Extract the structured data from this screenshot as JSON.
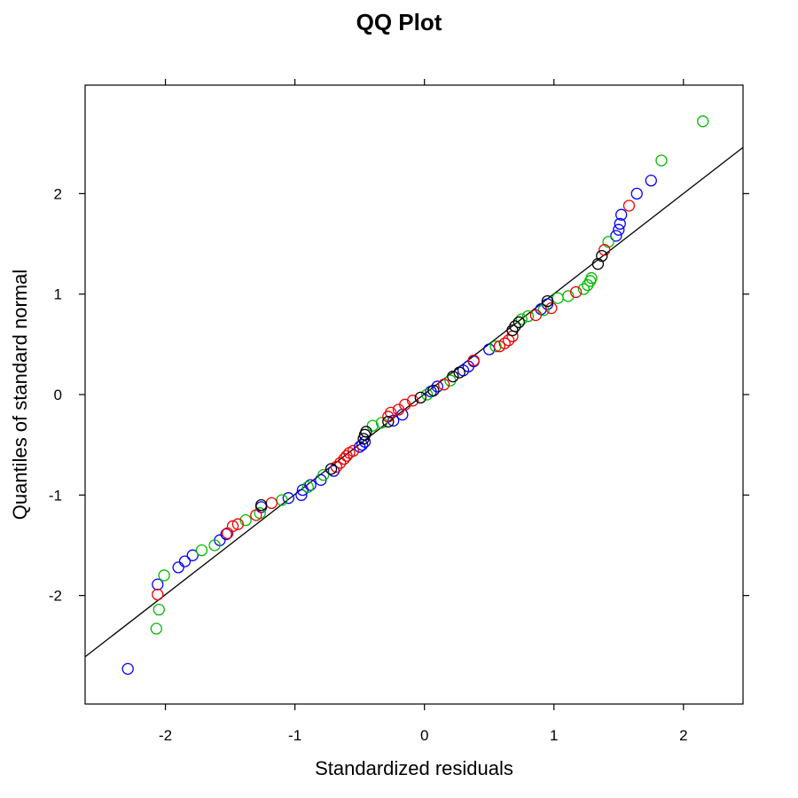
{
  "chart_data": {
    "type": "scatter",
    "title": "QQ Plot",
    "xlabel": "Standardized residuals",
    "ylabel": "Quantiles of standard normal",
    "xlim": [
      -2.62,
      2.46
    ],
    "ylim": [
      -3.08,
      3.08
    ],
    "x_ticks": [
      -2,
      -1,
      0,
      1,
      2
    ],
    "x_tick_labels": [
      "-2",
      "-1",
      "0",
      "1",
      "2"
    ],
    "y_ticks": [
      -2,
      -1,
      0,
      1,
      2
    ],
    "y_tick_labels": [
      "-2",
      "-1",
      "0",
      "1",
      "2"
    ],
    "grid": false,
    "marker": "open-circle",
    "reference_line": {
      "x1": -2.62,
      "y1": -2.61,
      "x2": 2.46,
      "y2": 2.46,
      "color": "#000000"
    },
    "series": [
      {
        "color": "#0000ff",
        "points": [
          [
            -2.29,
            -2.73
          ],
          [
            -2.06,
            -1.89
          ],
          [
            -1.9,
            -1.72
          ],
          [
            -1.85,
            -1.66
          ],
          [
            -1.79,
            -1.6
          ],
          [
            -1.58,
            -1.45
          ],
          [
            -1.53,
            -1.39
          ],
          [
            -1.26,
            -1.12
          ],
          [
            -1.05,
            -1.03
          ],
          [
            -0.95,
            -1.0
          ],
          [
            -0.94,
            -0.95
          ],
          [
            -0.88,
            -0.9
          ],
          [
            -0.8,
            -0.85
          ],
          [
            -0.7,
            -0.76
          ],
          [
            -0.5,
            -0.52
          ],
          [
            -0.48,
            -0.5
          ],
          [
            -0.46,
            -0.47
          ],
          [
            -0.24,
            -0.26
          ],
          [
            -0.17,
            -0.2
          ],
          [
            0.05,
            0.03
          ],
          [
            0.1,
            0.08
          ],
          [
            0.3,
            0.24
          ],
          [
            0.34,
            0.28
          ],
          [
            0.38,
            0.33
          ],
          [
            0.5,
            0.45
          ],
          [
            0.9,
            0.85
          ],
          [
            0.95,
            0.9
          ],
          [
            1.48,
            1.58
          ],
          [
            1.5,
            1.64
          ],
          [
            1.51,
            1.7
          ],
          [
            1.52,
            1.79
          ],
          [
            1.64,
            2.0
          ],
          [
            1.75,
            2.13
          ]
        ]
      },
      {
        "color": "#00bb00",
        "points": [
          [
            -2.07,
            -2.33
          ],
          [
            -2.05,
            -2.14
          ],
          [
            -2.01,
            -1.8
          ],
          [
            -1.72,
            -1.55
          ],
          [
            -1.62,
            -1.5
          ],
          [
            -1.38,
            -1.25
          ],
          [
            -1.27,
            -1.18
          ],
          [
            -1.1,
            -1.05
          ],
          [
            -0.9,
            -0.92
          ],
          [
            -0.78,
            -0.8
          ],
          [
            -0.4,
            -0.31
          ],
          [
            -0.33,
            -0.28
          ],
          [
            0.02,
            0.0
          ],
          [
            0.2,
            0.14
          ],
          [
            0.55,
            0.48
          ],
          [
            0.75,
            0.75
          ],
          [
            0.8,
            0.78
          ],
          [
            0.92,
            0.84
          ],
          [
            1.03,
            0.96
          ],
          [
            1.11,
            0.98
          ],
          [
            1.23,
            1.05
          ],
          [
            1.26,
            1.09
          ],
          [
            1.28,
            1.13
          ],
          [
            1.29,
            1.16
          ],
          [
            1.42,
            1.52
          ],
          [
            1.83,
            2.33
          ],
          [
            2.15,
            2.72
          ]
        ]
      },
      {
        "color": "#ee0000",
        "points": [
          [
            -2.06,
            -1.99
          ],
          [
            -1.52,
            -1.38
          ],
          [
            -1.48,
            -1.31
          ],
          [
            -1.44,
            -1.29
          ],
          [
            -1.3,
            -1.2
          ],
          [
            -1.18,
            -1.08
          ],
          [
            -0.68,
            -0.72
          ],
          [
            -0.65,
            -0.68
          ],
          [
            -0.62,
            -0.64
          ],
          [
            -0.6,
            -0.61
          ],
          [
            -0.58,
            -0.58
          ],
          [
            -0.55,
            -0.56
          ],
          [
            -0.28,
            -0.22
          ],
          [
            -0.26,
            -0.18
          ],
          [
            -0.2,
            -0.15
          ],
          [
            -0.15,
            -0.1
          ],
          [
            -0.09,
            -0.06
          ],
          [
            0.15,
            0.1
          ],
          [
            0.38,
            0.34
          ],
          [
            0.58,
            0.48
          ],
          [
            0.62,
            0.51
          ],
          [
            0.65,
            0.54
          ],
          [
            0.68,
            0.58
          ],
          [
            0.86,
            0.79
          ],
          [
            0.98,
            0.86
          ],
          [
            1.17,
            1.02
          ],
          [
            1.39,
            1.44
          ],
          [
            1.58,
            1.88
          ]
        ]
      },
      {
        "color": "#000000",
        "points": [
          [
            -1.26,
            -1.1
          ],
          [
            -0.72,
            -0.74
          ],
          [
            -0.47,
            -0.44
          ],
          [
            -0.46,
            -0.4
          ],
          [
            -0.45,
            -0.37
          ],
          [
            -0.28,
            -0.27
          ],
          [
            -0.03,
            -0.03
          ],
          [
            0.07,
            0.04
          ],
          [
            0.22,
            0.18
          ],
          [
            0.27,
            0.22
          ],
          [
            0.68,
            0.64
          ],
          [
            0.7,
            0.68
          ],
          [
            0.73,
            0.72
          ],
          [
            0.95,
            0.93
          ],
          [
            1.34,
            1.3
          ],
          [
            1.37,
            1.38
          ]
        ]
      }
    ]
  }
}
